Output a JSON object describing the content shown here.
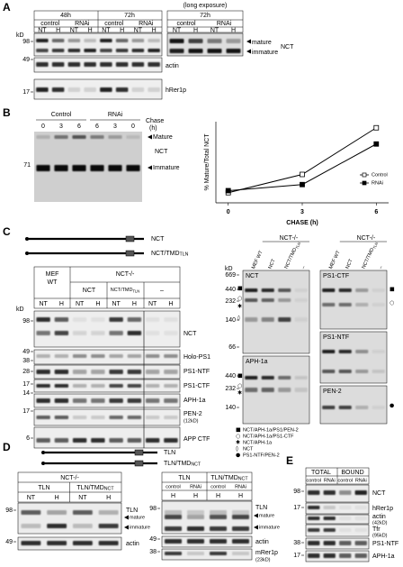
{
  "panel_a": {
    "label": "A",
    "times": [
      "48h",
      "72h",
      "72h"
    ],
    "long_exposure": "(long exposure)",
    "groups": [
      "control",
      "RNAi",
      "control",
      "RNAi",
      "control",
      "RNAi"
    ],
    "lanes": [
      "NT",
      "H",
      "NT",
      "H",
      "NT",
      "H",
      "NT",
      "H",
      "NT",
      "H",
      "NT",
      "H"
    ],
    "kd": "kD",
    "markers": [
      98,
      49,
      17
    ],
    "bands": [
      "mature",
      "immature"
    ],
    "proteins": [
      "NCT",
      "actin",
      "hRer1p"
    ]
  },
  "panel_b": {
    "label": "B",
    "groups": [
      "Control",
      "RNAi"
    ],
    "chase": "Chase",
    "chase_unit": "(h)",
    "lanes": [
      0,
      3,
      6,
      6,
      3,
      0
    ],
    "bands": [
      "Mature",
      "NCT",
      "Immature"
    ],
    "marker": 71,
    "chart": {
      "type": "line",
      "ylabel": "% Mature/Total NCT",
      "xlabel": "CHASE (h)",
      "x": [
        0,
        3,
        6
      ],
      "xlim": [
        -0.5,
        6.5
      ],
      "xticks": [
        0,
        3,
        6
      ],
      "ylim": [
        0,
        40
      ],
      "line_color": "#000000",
      "legend": "right",
      "series": [
        {
          "name": "Control",
          "color": "#ffffff",
          "values": [
            5,
            14,
            37
          ]
        },
        {
          "name": "RNAi",
          "color": "#000000",
          "values": [
            6,
            9,
            29
          ]
        }
      ]
    }
  },
  "panel_c": {
    "label": "C",
    "constructs": [
      "NCT",
      {
        "main": "NCT/TMD",
        "sub": "TLN"
      }
    ],
    "left": {
      "mef": [
        "MEF",
        "WT"
      ],
      "ko": "NCT-/-",
      "groups": [
        "NCT",
        {
          "main": "NCT/TMD",
          "sub": "TLN"
        },
        "–"
      ],
      "lanes": [
        "NT",
        "H",
        "NT",
        "H",
        "NT",
        "H",
        "NT",
        "H"
      ],
      "kd": "kD",
      "markers": [
        98,
        49,
        38,
        28,
        17,
        14,
        17,
        6
      ],
      "proteins": [
        "NCT",
        "Holo-PS1",
        "PS1-NTF",
        "PS1-CTF",
        "APH-1a",
        "PEN-2",
        "APP CTF"
      ],
      "pen2_size": "(12kD)"
    },
    "right": {
      "ko": "NCT-/-",
      "lanes": [
        "MEF WT",
        "NCT",
        {
          "main": "NCT/TMD",
          "sub": "TLN"
        },
        "–"
      ],
      "kd": "kD",
      "markers_upper": [
        669,
        440,
        232,
        140,
        66
      ],
      "markers_lower": [
        440,
        232,
        140
      ],
      "gels": [
        "NCT",
        "APH-1a",
        "PS1-CTF",
        "PS1-NTF",
        "PEN-2"
      ],
      "legend": [
        {
          "symbol": "■",
          "text": "NCT/APH-1a/PS1/PEN-2"
        },
        {
          "symbol": "○",
          "text": "NCT/APH-1a/PS1-CTF"
        },
        {
          "symbol": "✱",
          "text": "NCT/APH-1a"
        },
        {
          "symbol": "◊",
          "text": "NCT"
        },
        {
          "symbol": "●",
          "text": "PS1-NTF/PEN-2"
        }
      ]
    }
  },
  "panel_d": {
    "label": "D",
    "constructs": [
      "TLN",
      {
        "main": "TLN/TMD",
        "sub": "NCT"
      }
    ],
    "left": {
      "ko": "NCT-/-",
      "groups": [
        "TLN",
        {
          "main": "TLN/TMD",
          "sub": "NCT"
        }
      ],
      "lanes": [
        "NT",
        "H",
        "NT",
        "H"
      ],
      "markers": [
        98,
        49
      ],
      "labels": [
        "TLN",
        "mature",
        "immature",
        "actin"
      ]
    },
    "right": {
      "groups": [
        "TLN",
        {
          "main": "TLN/TMD",
          "sub": "NCT"
        }
      ],
      "conditions": [
        "control",
        "RNAi",
        "control",
        "RNAi"
      ],
      "lanes": [
        "H",
        "H",
        "H",
        "H"
      ],
      "markers": [
        98,
        49,
        38
      ],
      "labels": [
        "TLN",
        "mature",
        "immature",
        "actin",
        "mRer1p",
        "(23kD)"
      ]
    }
  },
  "panel_e": {
    "label": "E",
    "groups": [
      "TOTAL",
      "BOUND"
    ],
    "conditions": [
      "control",
      "RNAi",
      "control",
      "RNAi"
    ],
    "markers": [
      98,
      17,
      38,
      17
    ],
    "labels": [
      "NCT",
      "hRer1p",
      "actin",
      "(42kD)",
      "Tfr",
      "(95kD)",
      "PS1-NTF",
      "APH-1a"
    ]
  }
}
